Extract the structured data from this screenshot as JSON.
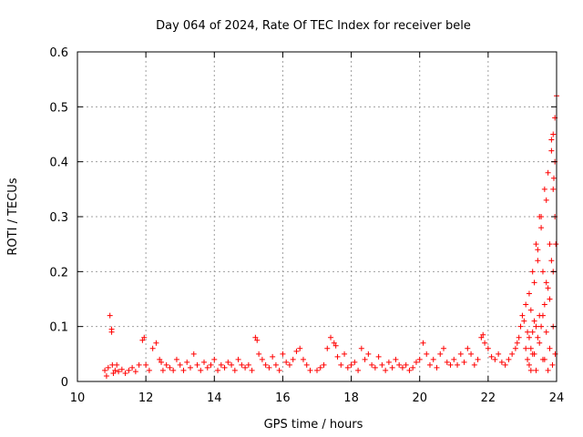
{
  "chart_data": {
    "type": "scatter",
    "title": "Day 064 of 2024, Rate Of TEC Index for receiver bele",
    "xlabel": "GPS time / hours",
    "ylabel": "ROTI / TECUs",
    "xlim": [
      10,
      24
    ],
    "ylim": [
      0,
      0.6
    ],
    "xticks": [
      10,
      12,
      14,
      16,
      18,
      20,
      22,
      24
    ],
    "yticks": [
      0,
      0.1,
      0.2,
      0.3,
      0.4,
      0.5,
      0.6
    ],
    "xtick_labels": [
      "10",
      "12",
      "14",
      "16",
      "18",
      "20",
      "22",
      "24"
    ],
    "ytick_labels": [
      "0",
      "0.1",
      "0.2",
      "0.3",
      "0.4",
      "0.5",
      "0.6"
    ],
    "grid": true,
    "marker": "+",
    "color": "#ff0000",
    "series": [
      {
        "x": [
          10.8,
          10.85,
          10.9,
          10.95,
          11.0,
          11.0,
          11.02,
          11.05,
          11.1,
          11.15,
          11.2,
          11.3,
          11.4,
          11.5,
          11.6,
          11.7,
          11.8,
          11.9,
          11.95,
          12.0,
          12.1,
          12.2,
          12.3,
          12.4,
          12.45,
          12.5,
          12.6,
          12.7,
          12.8,
          12.9,
          13.0,
          13.1,
          13.2,
          13.3,
          13.4,
          13.5,
          13.6,
          13.7,
          13.8,
          13.9,
          14.0,
          14.1,
          14.2,
          14.3,
          14.4,
          14.5,
          14.6,
          14.7,
          14.8,
          14.9,
          15.0,
          15.1,
          15.2,
          15.25,
          15.3,
          15.4,
          15.5,
          15.6,
          15.7,
          15.8,
          15.9,
          16.0,
          16.1,
          16.2,
          16.3,
          16.4,
          16.5,
          16.6,
          16.7,
          16.8,
          17.0,
          17.1,
          17.2,
          17.3,
          17.4,
          17.5,
          17.55,
          17.6,
          17.7,
          17.8,
          17.9,
          18.0,
          18.1,
          18.2,
          18.3,
          18.4,
          18.5,
          18.6,
          18.7,
          18.8,
          18.9,
          19.0,
          19.1,
          19.2,
          19.3,
          19.4,
          19.5,
          19.6,
          19.7,
          19.8,
          19.9,
          20.0,
          20.1,
          20.2,
          20.3,
          20.4,
          20.5,
          20.6,
          20.7,
          20.8,
          20.9,
          21.0,
          21.1,
          21.2,
          21.3,
          21.4,
          21.5,
          21.6,
          21.7,
          21.8,
          21.85,
          21.9,
          22.0,
          22.1,
          22.2,
          22.3,
          22.4,
          22.5,
          22.6,
          22.7,
          22.8,
          22.85,
          22.9,
          22.95,
          23.0,
          23.05,
          23.1,
          23.15,
          23.2,
          23.25,
          23.3,
          23.35,
          23.4,
          23.45,
          23.5,
          23.55,
          23.6,
          23.65,
          23.7,
          23.75,
          23.8,
          23.85,
          23.9,
          23.95,
          24.0,
          23.1,
          23.2,
          23.3,
          23.4,
          23.5,
          23.6,
          23.7,
          23.8,
          23.9,
          23.95,
          23.15,
          23.25,
          23.35,
          23.45,
          23.55,
          23.65,
          23.75,
          23.85,
          23.9,
          23.98,
          23.2,
          23.4,
          23.6,
          23.8,
          23.9,
          23.3,
          23.5,
          23.7,
          23.95,
          23.85,
          23.92,
          23.96,
          23.88,
          23.75,
          23.65,
          23.55,
          23.45,
          23.35,
          23.25
        ],
        "y": [
          0.02,
          0.01,
          0.025,
          0.12,
          0.09,
          0.095,
          0.03,
          0.015,
          0.02,
          0.03,
          0.018,
          0.022,
          0.015,
          0.02,
          0.025,
          0.018,
          0.03,
          0.075,
          0.08,
          0.03,
          0.02,
          0.06,
          0.07,
          0.04,
          0.035,
          0.02,
          0.03,
          0.025,
          0.02,
          0.04,
          0.03,
          0.02,
          0.035,
          0.025,
          0.05,
          0.03,
          0.02,
          0.035,
          0.025,
          0.03,
          0.04,
          0.02,
          0.03,
          0.025,
          0.035,
          0.03,
          0.02,
          0.04,
          0.03,
          0.025,
          0.03,
          0.02,
          0.08,
          0.075,
          0.05,
          0.04,
          0.03,
          0.025,
          0.045,
          0.03,
          0.02,
          0.05,
          0.035,
          0.03,
          0.04,
          0.055,
          0.06,
          0.04,
          0.03,
          0.02,
          0.02,
          0.025,
          0.03,
          0.06,
          0.08,
          0.07,
          0.065,
          0.045,
          0.03,
          0.05,
          0.025,
          0.03,
          0.035,
          0.02,
          0.06,
          0.04,
          0.05,
          0.03,
          0.025,
          0.045,
          0.03,
          0.02,
          0.035,
          0.025,
          0.04,
          0.03,
          0.025,
          0.03,
          0.02,
          0.025,
          0.035,
          0.04,
          0.07,
          0.05,
          0.03,
          0.04,
          0.025,
          0.05,
          0.06,
          0.035,
          0.03,
          0.04,
          0.03,
          0.05,
          0.035,
          0.06,
          0.05,
          0.03,
          0.04,
          0.08,
          0.085,
          0.07,
          0.06,
          0.045,
          0.04,
          0.05,
          0.035,
          0.03,
          0.04,
          0.05,
          0.06,
          0.07,
          0.08,
          0.1,
          0.12,
          0.11,
          0.14,
          0.09,
          0.16,
          0.13,
          0.2,
          0.18,
          0.25,
          0.22,
          0.3,
          0.28,
          0.2,
          0.35,
          0.33,
          0.38,
          0.25,
          0.42,
          0.45,
          0.48,
          0.52,
          0.06,
          0.08,
          0.05,
          0.1,
          0.07,
          0.12,
          0.09,
          0.15,
          0.2,
          0.3,
          0.04,
          0.06,
          0.05,
          0.08,
          0.1,
          0.14,
          0.17,
          0.22,
          0.1,
          0.25,
          0.03,
          0.02,
          0.04,
          0.06,
          0.35,
          0.09,
          0.12,
          0.18,
          0.4,
          0.44,
          0.37,
          0.05,
          0.03,
          0.02,
          0.04,
          0.3,
          0.24,
          0.11,
          0.02
        ]
      }
    ]
  }
}
